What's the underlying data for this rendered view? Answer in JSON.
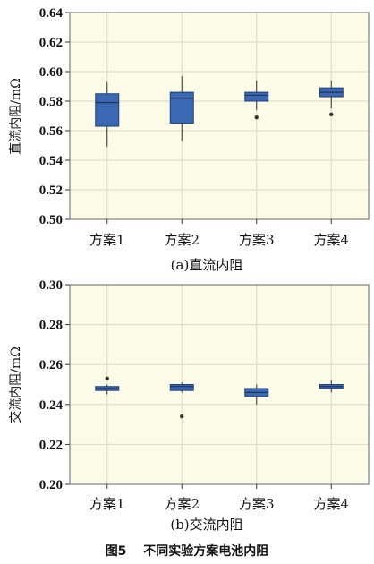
{
  "figure_caption": "图5　 不同实验方案电池内阻",
  "chart_data": [
    {
      "type": "box",
      "subtitle": "(a)直流内阻",
      "ylabel": "直流内阻/mΩ",
      "xlabel": "",
      "ylim": [
        0.5,
        0.64
      ],
      "yticks": [
        "0.64",
        "0.62",
        "0.60",
        "0.58",
        "0.56",
        "0.54",
        "0.52",
        "0.50"
      ],
      "categories": [
        "方案1",
        "方案2",
        "方案3",
        "方案4"
      ],
      "boxes": [
        {
          "min": 0.549,
          "q1": 0.563,
          "median": 0.579,
          "q3": 0.585,
          "max": 0.593,
          "outliers": []
        },
        {
          "min": 0.553,
          "q1": 0.565,
          "median": 0.582,
          "q3": 0.586,
          "max": 0.597,
          "outliers": []
        },
        {
          "min": 0.574,
          "q1": 0.58,
          "median": 0.584,
          "q3": 0.586,
          "max": 0.594,
          "outliers": [
            0.569
          ]
        },
        {
          "min": 0.575,
          "q1": 0.583,
          "median": 0.586,
          "q3": 0.589,
          "max": 0.594,
          "outliers": [
            0.571
          ]
        }
      ],
      "grid": true,
      "box_color": "#3a68b3",
      "plot_bg": "#fbfbe8",
      "grid_color": "#d9d9c6"
    },
    {
      "type": "box",
      "subtitle": "(b)交流内阻",
      "ylabel": "交流内阻/mΩ",
      "xlabel": "",
      "ylim": [
        0.2,
        0.3
      ],
      "yticks": [
        "0.30",
        "0.28",
        "0.26",
        "0.24",
        "0.22",
        "0.20"
      ],
      "categories": [
        "方案1",
        "方案2",
        "方案3",
        "方案4"
      ],
      "boxes": [
        {
          "min": 0.245,
          "q1": 0.247,
          "median": 0.248,
          "q3": 0.249,
          "max": 0.25,
          "outliers": [
            0.253
          ]
        },
        {
          "min": 0.246,
          "q1": 0.247,
          "median": 0.249,
          "q3": 0.25,
          "max": 0.251,
          "outliers": [
            0.234
          ]
        },
        {
          "min": 0.24,
          "q1": 0.244,
          "median": 0.246,
          "q3": 0.248,
          "max": 0.25,
          "outliers": []
        },
        {
          "min": 0.246,
          "q1": 0.248,
          "median": 0.249,
          "q3": 0.25,
          "max": 0.252,
          "outliers": []
        }
      ],
      "grid": true,
      "box_color": "#3a68b3",
      "plot_bg": "#fbfbe8",
      "grid_color": "#d9d9c6"
    }
  ]
}
